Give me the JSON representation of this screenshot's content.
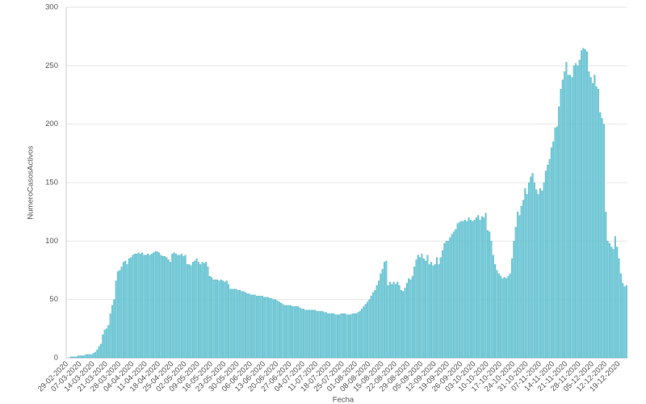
{
  "chart_data": {
    "type": "bar",
    "y_label": "NumeroCasosActivos",
    "x_label": "Fecha",
    "color": "#72cad8",
    "grid": true,
    "ylim": [
      0,
      300
    ],
    "yticks": [
      0,
      50,
      100,
      150,
      200,
      250,
      300
    ],
    "categories": [
      "29-02-2020",
      null,
      null,
      null,
      null,
      null,
      null,
      "07-03-2020",
      null,
      null,
      null,
      null,
      null,
      null,
      "14-03-2020",
      null,
      null,
      null,
      null,
      null,
      null,
      "21-03-2020",
      null,
      null,
      null,
      null,
      null,
      null,
      "28-03-2020",
      null,
      null,
      null,
      null,
      null,
      null,
      "04-04-2020",
      null,
      null,
      null,
      null,
      null,
      null,
      "11-04-2020",
      null,
      null,
      null,
      null,
      null,
      null,
      "18-04-2020",
      null,
      null,
      null,
      null,
      null,
      null,
      "25-04-2020",
      null,
      null,
      null,
      null,
      null,
      null,
      "02-05-2020",
      null,
      null,
      null,
      null,
      null,
      null,
      "09-05-2020",
      null,
      null,
      null,
      null,
      null,
      null,
      "16-05-2020",
      null,
      null,
      null,
      null,
      null,
      null,
      "23-05-2020",
      null,
      null,
      null,
      null,
      null,
      null,
      "30-05-2020",
      null,
      null,
      null,
      null,
      null,
      null,
      "06-06-2020",
      null,
      null,
      null,
      null,
      null,
      null,
      "13-06-2020",
      null,
      null,
      null,
      null,
      null,
      null,
      "20-06-2020",
      null,
      null,
      null,
      null,
      null,
      null,
      "27-06-2020",
      null,
      null,
      null,
      null,
      null,
      null,
      "04-07-2020",
      null,
      null,
      null,
      null,
      null,
      null,
      "11-07-2020",
      null,
      null,
      null,
      null,
      null,
      null,
      "18-07-2020",
      null,
      null,
      null,
      null,
      null,
      null,
      "25-07-2020",
      null,
      null,
      null,
      null,
      null,
      null,
      "01-08-2020",
      null,
      null,
      null,
      null,
      null,
      null,
      "08-08-2020",
      null,
      null,
      null,
      null,
      null,
      null,
      "15-08-2020",
      null,
      null,
      null,
      null,
      null,
      null,
      "22-08-2020",
      null,
      null,
      null,
      null,
      null,
      null,
      "29-08-2020",
      null,
      null,
      null,
      null,
      null,
      null,
      "05-09-2020",
      null,
      null,
      null,
      null,
      null,
      null,
      "12-09-2020",
      null,
      null,
      null,
      null,
      null,
      null,
      "19-09-2020",
      null,
      null,
      null,
      null,
      null,
      null,
      "26-09-2020",
      null,
      null,
      null,
      null,
      null,
      null,
      "03-10-2020",
      null,
      null,
      null,
      null,
      null,
      null,
      "10-10-2020",
      null,
      null,
      null,
      null,
      null,
      null,
      "17-10-2020",
      null,
      null,
      null,
      null,
      null,
      null,
      "24-10-2020",
      null,
      null,
      null,
      null,
      null,
      null,
      "31-10-2020",
      null,
      null,
      null,
      null,
      null,
      null,
      "07-11-2020",
      null,
      null,
      null,
      null,
      null,
      null,
      "14-11-2020",
      null,
      null,
      null,
      null,
      null,
      null,
      "21-11-2020",
      null,
      null,
      null,
      null,
      null,
      null,
      "28-11-2020",
      null,
      null,
      null,
      null,
      null,
      null,
      "05-12-2020",
      null,
      null,
      null,
      null,
      null,
      null,
      "12-12-2020",
      null,
      null,
      null,
      null,
      null,
      null,
      "19-12-2020",
      null,
      null,
      null,
      null
    ],
    "values": [
      0,
      0,
      1,
      1,
      1,
      1,
      2,
      2,
      2,
      2,
      3,
      3,
      3,
      3,
      4,
      5,
      7,
      10,
      12,
      20,
      24,
      25,
      28,
      38,
      45,
      50,
      66,
      74,
      75,
      78,
      82,
      83,
      80,
      85,
      86,
      88,
      89,
      89,
      90,
      89,
      90,
      88,
      88,
      89,
      88,
      89,
      90,
      91,
      91,
      90,
      88,
      87,
      87,
      86,
      84,
      82,
      89,
      90,
      89,
      88,
      88,
      89,
      87,
      88,
      80,
      80,
      79,
      82,
      83,
      85,
      82,
      80,
      82,
      81,
      82,
      78,
      70,
      69,
      67,
      67,
      67,
      66,
      67,
      66,
      65,
      66,
      63,
      59,
      59,
      59,
      59,
      58,
      58,
      57,
      57,
      56,
      55,
      55,
      54,
      54,
      54,
      53,
      53,
      53,
      53,
      52,
      52,
      52,
      51,
      51,
      50,
      50,
      49,
      48,
      47,
      46,
      45,
      45,
      45,
      45,
      44,
      44,
      44,
      44,
      43,
      42,
      42,
      41,
      41,
      41,
      41,
      41,
      41,
      40,
      40,
      40,
      40,
      39,
      39,
      38,
      38,
      38,
      38,
      37,
      37,
      37,
      38,
      38,
      38,
      37,
      37,
      37,
      38,
      38,
      38,
      39,
      40,
      42,
      44,
      46,
      48,
      50,
      53,
      56,
      58,
      62,
      66,
      72,
      76,
      82,
      83,
      62,
      65,
      63,
      65,
      63,
      65,
      62,
      58,
      57,
      60,
      64,
      68,
      67,
      70,
      78,
      84,
      88,
      86,
      89,
      85,
      83,
      88,
      80,
      82,
      79,
      80,
      86,
      80,
      86,
      92,
      98,
      100,
      100,
      103,
      106,
      108,
      110,
      115,
      116,
      117,
      117,
      118,
      117,
      120,
      118,
      117,
      118,
      120,
      122,
      118,
      121,
      120,
      124,
      109,
      108,
      100,
      88,
      80,
      75,
      72,
      70,
      68,
      69,
      68,
      70,
      72,
      85,
      100,
      112,
      125,
      122,
      130,
      135,
      145,
      140,
      150,
      155,
      158,
      150,
      144,
      140,
      145,
      143,
      150,
      160,
      165,
      170,
      180,
      185,
      197,
      198,
      215,
      230,
      238,
      245,
      253,
      242,
      242,
      240,
      250,
      252,
      250,
      255,
      263,
      265,
      264,
      262,
      245,
      240,
      235,
      242,
      232,
      230,
      210,
      205,
      200,
      125,
      100,
      98,
      95,
      93,
      104,
      95,
      85,
      72,
      64,
      61,
      62
    ]
  }
}
